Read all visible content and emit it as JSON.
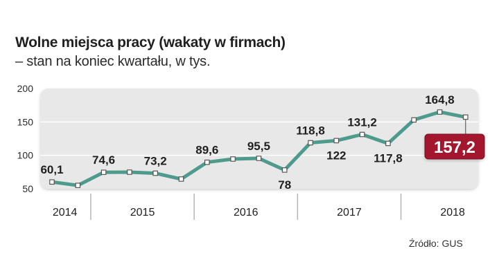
{
  "title": "Wolne miejsca pracy (wakaty w firmach)",
  "subtitle": "– stan na koniec kwartału, w tys.",
  "source": "Źródło: GUS",
  "colors": {
    "line": "#4e9a8c",
    "panel": "#e8e8e8",
    "highlight": "#a3192d",
    "grid": "#ffffff",
    "separator": "#b5b5b5"
  },
  "chart_data": {
    "type": "line",
    "title": "Wolne miejsca pracy (wakaty w firmach)",
    "xlabel": "",
    "ylabel": "",
    "ylim": [
      50,
      200
    ],
    "yticks": [
      200,
      150,
      100,
      50
    ],
    "ytick_labels": [
      "200",
      "150",
      "100",
      "50"
    ],
    "years": [
      "2014",
      "2015",
      "2016",
      "2017",
      "2018"
    ],
    "quarters_per_year": [
      2,
      4,
      4,
      4,
      4
    ],
    "series": [
      {
        "name": "Wolne miejsca pracy",
        "values": [
          60.1,
          55.0,
          74.6,
          74.8,
          73.2,
          64.5,
          89.6,
          94.5,
          95.5,
          78,
          118.8,
          122,
          131.2,
          117.8,
          153.0,
          164.8,
          157.2
        ]
      }
    ],
    "data_labels": [
      {
        "index": 0,
        "text": "60,1",
        "pos": "above"
      },
      {
        "index": 2,
        "text": "74,6",
        "pos": "above"
      },
      {
        "index": 4,
        "text": "73,2",
        "pos": "above"
      },
      {
        "index": 6,
        "text": "89,6",
        "pos": "above"
      },
      {
        "index": 8,
        "text": "95,5",
        "pos": "above"
      },
      {
        "index": 9,
        "text": "78",
        "pos": "below"
      },
      {
        "index": 10,
        "text": "118,8",
        "pos": "above"
      },
      {
        "index": 11,
        "text": "122",
        "pos": "below"
      },
      {
        "index": 12,
        "text": "131,2",
        "pos": "above"
      },
      {
        "index": 13,
        "text": "117,8",
        "pos": "below"
      },
      {
        "index": 15,
        "text": "164,8",
        "pos": "above"
      }
    ],
    "highlight": {
      "index": 16,
      "text": "157,2"
    }
  }
}
